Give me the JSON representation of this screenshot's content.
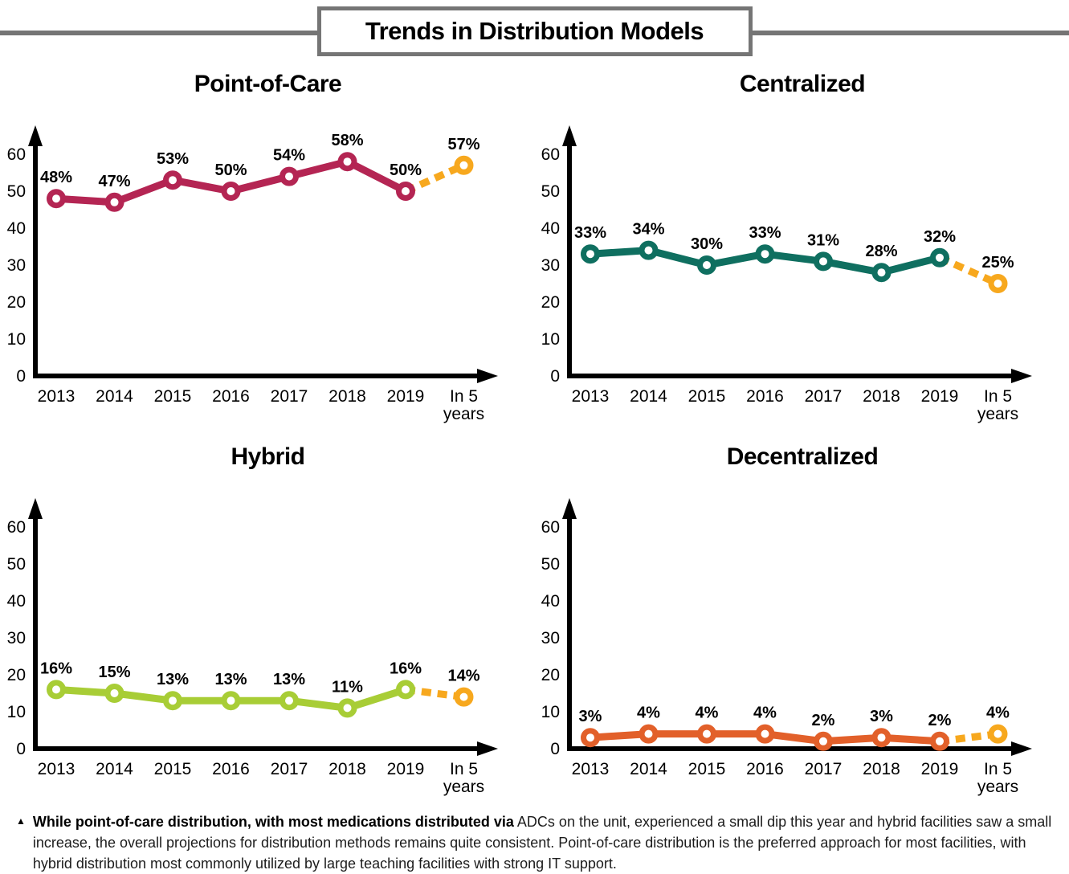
{
  "header": {
    "title": "Trends in Distribution Models"
  },
  "projection": {
    "color": "#f7a81e",
    "label": "In 5 years"
  },
  "chart_data": [
    {
      "type": "line",
      "title": "Point-of-Care",
      "line_color": "#b42553",
      "categories": [
        "2013",
        "2014",
        "2015",
        "2016",
        "2017",
        "2018",
        "2019",
        "In 5\nyears"
      ],
      "values": [
        48,
        47,
        53,
        50,
        54,
        58,
        50,
        57
      ],
      "value_suffix": "%",
      "projection_index": 7,
      "ylim": [
        0,
        65
      ],
      "yticks": [
        0,
        10,
        20,
        30,
        40,
        50,
        60
      ],
      "grid": false,
      "legend": false
    },
    {
      "type": "line",
      "title": "Centralized",
      "line_color": "#0f6f60",
      "categories": [
        "2013",
        "2014",
        "2015",
        "2016",
        "2017",
        "2018",
        "2019",
        "In 5\nyears"
      ],
      "values": [
        33,
        34,
        30,
        33,
        31,
        28,
        32,
        25
      ],
      "value_suffix": "%",
      "projection_index": 7,
      "ylim": [
        0,
        65
      ],
      "yticks": [
        0,
        10,
        20,
        30,
        40,
        50,
        60
      ],
      "grid": false,
      "legend": false
    },
    {
      "type": "line",
      "title": "Hybrid",
      "line_color": "#a8cd36",
      "categories": [
        "2013",
        "2014",
        "2015",
        "2016",
        "2017",
        "2018",
        "2019",
        "In 5\nyears"
      ],
      "values": [
        16,
        15,
        13,
        13,
        13,
        11,
        16,
        14
      ],
      "value_suffix": "%",
      "projection_index": 7,
      "ylim": [
        0,
        65
      ],
      "yticks": [
        0,
        10,
        20,
        30,
        40,
        50,
        60
      ],
      "grid": false,
      "legend": false
    },
    {
      "type": "line",
      "title": "Decentralized",
      "line_color": "#e2602a",
      "categories": [
        "2013",
        "2014",
        "2015",
        "2016",
        "2017",
        "2018",
        "2019",
        "In 5\nyears"
      ],
      "values": [
        3,
        4,
        4,
        4,
        2,
        3,
        2,
        4
      ],
      "value_suffix": "%",
      "projection_index": 7,
      "ylim": [
        0,
        65
      ],
      "yticks": [
        0,
        10,
        20,
        30,
        40,
        50,
        60
      ],
      "grid": false,
      "legend": false
    }
  ],
  "footnote": {
    "bullet": "▲",
    "bold_text": "While point-of-care distribution, with most medications distributed via",
    "regular_text": " ADCs on the unit, experienced a small dip this year and hybrid facilities saw a small increase, the overall projections for distribution methods remains quite consistent. Point-of-care distribution is the preferred approach for most facilities, with hybrid distribution most commonly utilized by large teaching facilities with strong IT support."
  }
}
